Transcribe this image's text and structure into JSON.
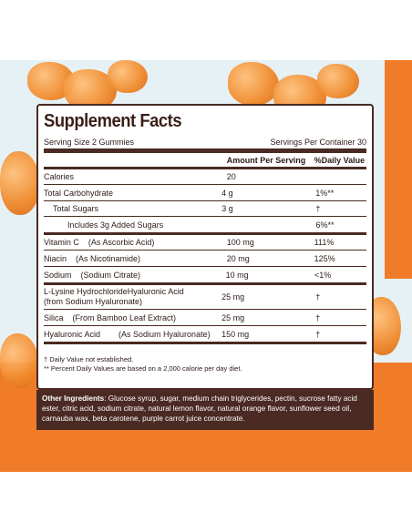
{
  "title": "Supplement Facts",
  "serving_size": "Serving Size 2 Gummies",
  "servings_per_container": "Servings Per Container 30",
  "header": {
    "amount": "Amount Per Serving",
    "dv": "%Daily Value"
  },
  "rows": [
    {
      "name": "Calories",
      "amount": "20",
      "dv": ""
    },
    {
      "name": "Total Carbohydrate",
      "amount": "4 g",
      "dv": "1%**"
    },
    {
      "name": "Total Sugars",
      "amount": "3 g",
      "dv": "†"
    },
    {
      "name": "Includes 3g Added Sugars",
      "amount": "",
      "dv": "6%**"
    },
    {
      "name": "Vitamin C    (As Ascorbic Acid)",
      "amount": "100 mg",
      "dv": "111%"
    },
    {
      "name": "Niacin    (As Nicotinamide)",
      "amount": "20 mg",
      "dv": "125%"
    },
    {
      "name": "Sodium    (Sodium Citrate)",
      "amount": "10 mg",
      "dv": "<1%"
    },
    {
      "name": "L-Lysine HydrochlorideHyaluronic Acid",
      "name2": "(from Sodium Hyaluronate)",
      "amount": "25 mg",
      "dv": "†"
    },
    {
      "name": "Silica    (From Bamboo Leaf Extract)",
      "amount": "25 mg",
      "dv": "†"
    },
    {
      "name": "Hyaluronic Acid        (As Sodium Hyaluronate)",
      "amount": "150 mg",
      "dv": "†"
    }
  ],
  "footnote1": "† Daily Value not established.",
  "footnote2": "** Percent Daily Values are based on a 2,000 calorie per day diet.",
  "ingredients_label": "Other Ingredients",
  "ingredients_text": ": Glucose syrup, sugar, medium chain triglycerides, pectin, sucrose fatty acid ester, citric acid, sodium citrate, natural lemon flavor, natural orange flavor, sunflower seed oil, carnauba wax, beta carotene, purple carrot juice concentrate.",
  "colors": {
    "brown": "#4a2a22",
    "orange": "#f07c2a",
    "bg": "#e6f1f6"
  }
}
